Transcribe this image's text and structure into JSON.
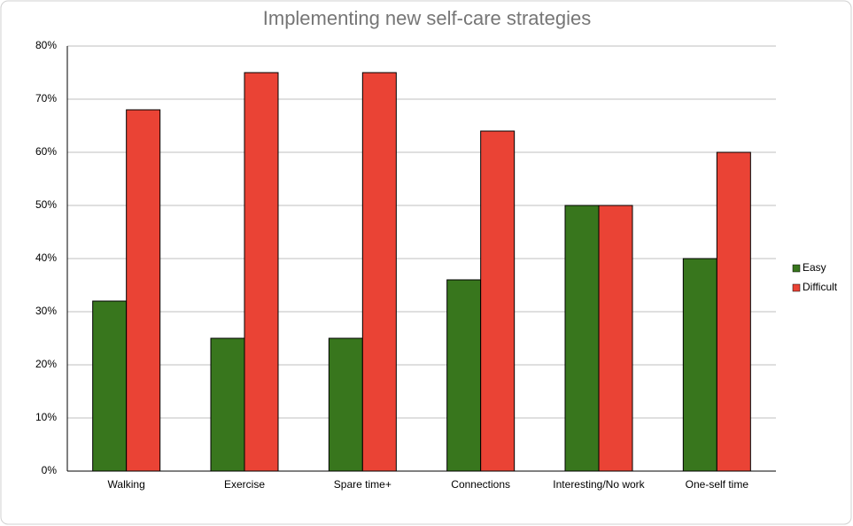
{
  "chart_data": {
    "type": "bar",
    "title": "Implementing new self-care strategies",
    "categories": [
      "Walking",
      "Exercise",
      "Spare time+",
      "Connections",
      "Interesting/No work",
      "One-self time"
    ],
    "series": [
      {
        "name": "Easy",
        "color": "#38761d",
        "values": [
          32,
          25,
          25,
          36,
          50,
          40
        ]
      },
      {
        "name": "Difficult",
        "color": "#ea4335",
        "values": [
          68,
          75,
          75,
          64,
          50,
          60
        ]
      }
    ],
    "ylim": [
      0,
      80
    ],
    "yticks": [
      {
        "value": 0,
        "label": "0%"
      },
      {
        "value": 10,
        "label": "10%"
      },
      {
        "value": 20,
        "label": "20%"
      },
      {
        "value": 30,
        "label": "30%"
      },
      {
        "value": 40,
        "label": "40%"
      },
      {
        "value": 50,
        "label": "50%"
      },
      {
        "value": 60,
        "label": "60%"
      },
      {
        "value": 70,
        "label": "70%"
      },
      {
        "value": 80,
        "label": "80%"
      }
    ],
    "grid": true,
    "legend": "right"
  }
}
